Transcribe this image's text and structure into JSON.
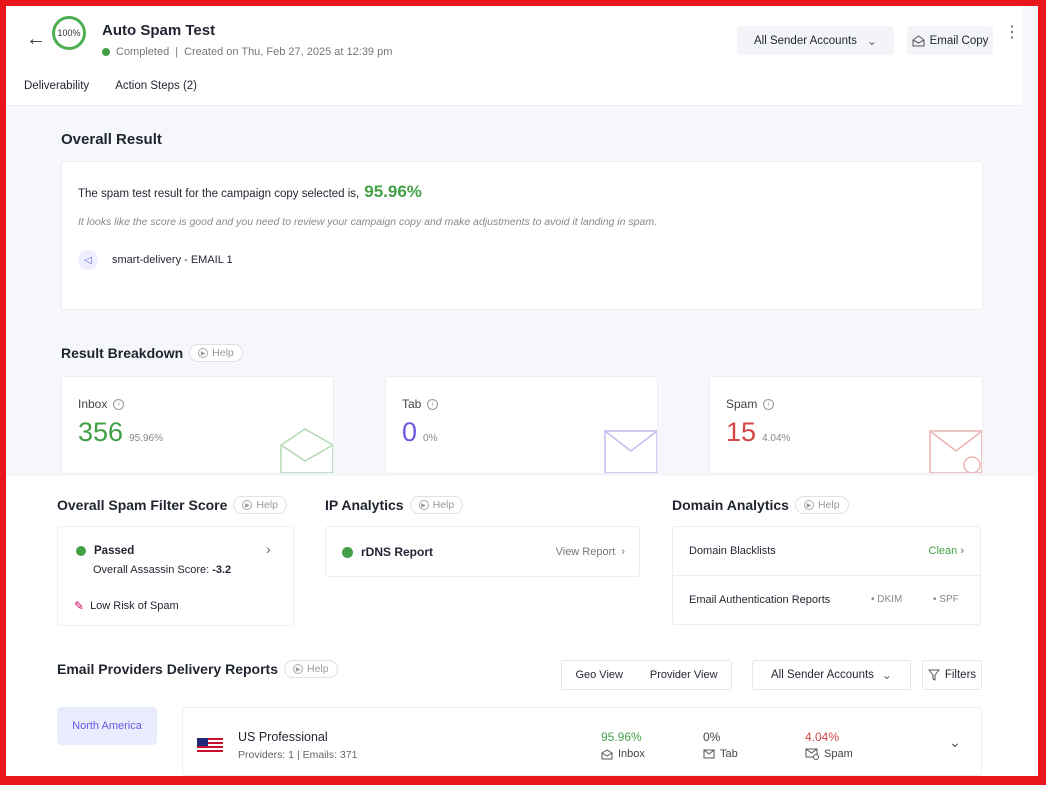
{
  "header": {
    "progress": "100%",
    "title": "Auto Spam Test",
    "status": "Completed",
    "created": "Created on Thu, Feb 27, 2025 at 12:39 pm",
    "sender_accounts": "All Sender Accounts",
    "email_copy": "Email Copy"
  },
  "tabs": [
    "Deliverability",
    "Action Steps (2)"
  ],
  "overall": {
    "heading": "Overall Result",
    "result_text": "The spam test result for the campaign copy selected is,",
    "score": "95.96%",
    "note": "It looks like the score is good and you need to review your campaign copy and make adjustments to avoid it landing in spam.",
    "campaign": "smart-delivery - EMAIL 1"
  },
  "breakdown": {
    "heading": "Result Breakdown",
    "help": "Help",
    "cards": [
      {
        "label": "Inbox",
        "value": "356",
        "pct": "95.96%",
        "color": "#43a047"
      },
      {
        "label": "Tab",
        "value": "0",
        "pct": "0%",
        "color": "#6a5ae0"
      },
      {
        "label": "Spam",
        "value": "15",
        "pct": "4.04%",
        "color": "#d64545"
      }
    ]
  },
  "spam_filter": {
    "heading": "Overall Spam Filter Score",
    "help": "Help",
    "status": "Passed",
    "score_label": "Overall Assassin Score:",
    "score_value": "-3.2",
    "risk": "Low Risk of Spam"
  },
  "ip": {
    "heading": "IP Analytics",
    "help": "Help",
    "report": "rDNS Report",
    "view": "View Report"
  },
  "domain": {
    "heading": "Domain Analytics",
    "help": "Help",
    "blacklists": "Domain Blacklists",
    "clean": "Clean",
    "auth": "Email Authentication Reports",
    "dkim": "DKIM",
    "spf": "SPF"
  },
  "providers": {
    "heading": "Email Providers Delivery Reports",
    "help": "Help",
    "geo_view": "Geo View",
    "provider_view": "Provider View",
    "sender_accounts": "All Sender Accounts",
    "filters": "Filters",
    "region": "North America",
    "row": {
      "name": "US Professional",
      "meta": "Providers: 1  |  Emails: 371",
      "inbox_pct": "95.96%",
      "inbox": "Inbox",
      "tab_pct": "0%",
      "tab": "Tab",
      "spam_pct": "4.04%",
      "spam": "Spam"
    }
  }
}
